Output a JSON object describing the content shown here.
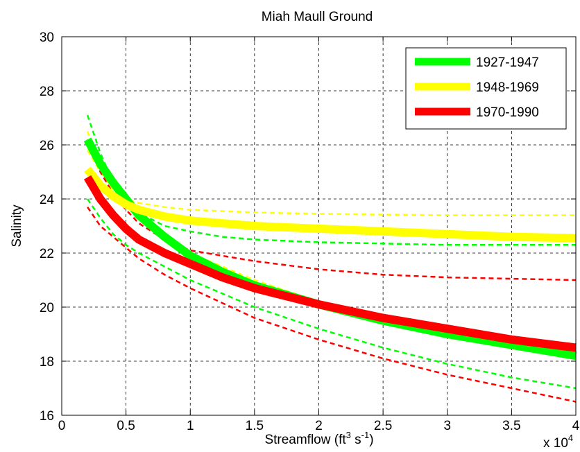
{
  "chart_data": {
    "type": "line",
    "title": "Miah Maull Ground",
    "ylabel": "Salinity",
    "xlabel_main": "Streamflow (ft",
    "xlabel_sup1": "3",
    "xlabel_mid": " s",
    "xlabel_sup2": "-1",
    "xlabel_end": ")",
    "x_multiplier_base": "x 10",
    "x_multiplier_exp": "4",
    "xlim": [
      0,
      4
    ],
    "ylim": [
      16,
      30
    ],
    "xticks": [
      0,
      0.5,
      1,
      1.5,
      2,
      2.5,
      3,
      3.5,
      4
    ],
    "xtick_labels": [
      "0",
      "0.5",
      "1",
      "1.5",
      "2",
      "2.5",
      "3",
      "3.5",
      "4"
    ],
    "yticks": [
      16,
      18,
      20,
      22,
      24,
      26,
      28,
      30
    ],
    "ytick_labels": [
      "16",
      "18",
      "20",
      "22",
      "24",
      "26",
      "28",
      "30"
    ],
    "grid": true,
    "legend_position": "top-right",
    "legend": [
      {
        "label": "1927-1947",
        "color": "#00ff00"
      },
      {
        "label": "1948-1969",
        "color": "#ffff00"
      },
      {
        "label": "1970-1990",
        "color": "#ff0000"
      }
    ],
    "series": [
      {
        "name": "1927-1947",
        "color": "#00ff00",
        "style": "solid",
        "weight": "thick",
        "x": [
          0.2,
          0.3,
          0.4,
          0.5,
          0.6,
          0.8,
          1.0,
          1.25,
          1.5,
          2.0,
          2.5,
          3.0,
          3.5,
          4.0
        ],
        "y": [
          26.2,
          25.3,
          24.6,
          24.0,
          23.4,
          22.6,
          21.9,
          21.3,
          20.8,
          20.1,
          19.5,
          19.0,
          18.6,
          18.2
        ]
      },
      {
        "name": "1927-1947 upper",
        "color": "#00ff00",
        "style": "dashed",
        "weight": "thin",
        "x": [
          0.2,
          0.3,
          0.4,
          0.5,
          0.6,
          0.8,
          1.0,
          1.25,
          1.5,
          2.0,
          2.5,
          3.0,
          3.5,
          4.0
        ],
        "y": [
          27.1,
          25.7,
          24.6,
          23.9,
          23.5,
          23.0,
          22.8,
          22.6,
          22.5,
          22.4,
          22.35,
          22.3,
          22.3,
          22.3
        ]
      },
      {
        "name": "1927-1947 lower",
        "color": "#00ff00",
        "style": "dashed",
        "weight": "thin",
        "x": [
          0.2,
          0.3,
          0.4,
          0.5,
          0.6,
          0.8,
          1.0,
          1.25,
          1.5,
          2.0,
          2.5,
          3.0,
          3.5,
          4.0
        ],
        "y": [
          24.0,
          23.3,
          22.7,
          22.3,
          22.0,
          21.5,
          21.0,
          20.5,
          20.0,
          19.2,
          18.5,
          17.9,
          17.4,
          17.0
        ]
      },
      {
        "name": "1948-1969",
        "color": "#ffff00",
        "style": "solid",
        "weight": "thick",
        "x": [
          0.2,
          0.3,
          0.4,
          0.5,
          0.6,
          0.8,
          1.0,
          1.5,
          2.0,
          2.5,
          3.0,
          3.5,
          4.0
        ],
        "y": [
          25.1,
          24.5,
          24.1,
          23.8,
          23.6,
          23.35,
          23.2,
          23.0,
          22.9,
          22.8,
          22.7,
          22.6,
          22.55
        ]
      },
      {
        "name": "1948-1969 upper",
        "color": "#ffff00",
        "style": "dashed",
        "weight": "thin",
        "x": [
          0.2,
          0.3,
          0.4,
          0.5,
          0.6,
          0.8,
          1.0,
          1.5,
          2.0,
          2.5,
          3.0,
          3.5,
          4.0
        ],
        "y": [
          26.5,
          25.1,
          24.4,
          24.0,
          23.85,
          23.7,
          23.6,
          23.5,
          23.45,
          23.42,
          23.4,
          23.4,
          23.4
        ]
      },
      {
        "name": "1948-1969 lower",
        "color": "#ffff00",
        "style": "dashed",
        "weight": "thin",
        "x": [
          0.2,
          0.3,
          0.4,
          0.5,
          0.6,
          0.8,
          1.0,
          1.5,
          2.0,
          2.5,
          3.0,
          3.5,
          4.0
        ],
        "y": [
          25.8,
          25.0,
          24.3,
          23.8,
          23.3,
          22.6,
          22.0,
          21.0,
          20.2,
          19.6,
          19.1,
          18.7,
          18.3
        ]
      },
      {
        "name": "1970-1990",
        "color": "#ff0000",
        "style": "solid",
        "weight": "thick",
        "x": [
          0.2,
          0.3,
          0.4,
          0.5,
          0.6,
          0.8,
          1.0,
          1.25,
          1.5,
          2.0,
          2.5,
          3.0,
          3.5,
          4.0
        ],
        "y": [
          24.8,
          24.0,
          23.4,
          22.9,
          22.5,
          22.0,
          21.6,
          21.1,
          20.7,
          20.1,
          19.6,
          19.2,
          18.8,
          18.5
        ]
      },
      {
        "name": "1970-1990 upper",
        "color": "#ff0000",
        "style": "dashed",
        "weight": "thin",
        "x": [
          0.2,
          0.3,
          0.4,
          0.5,
          0.6,
          0.8,
          1.0,
          1.5,
          2.0,
          2.5,
          3.0,
          3.5,
          4.0
        ],
        "y": [
          26.2,
          25.0,
          24.2,
          23.6,
          23.1,
          22.5,
          22.1,
          21.7,
          21.4,
          21.2,
          21.1,
          21.05,
          21.0
        ]
      },
      {
        "name": "1970-1990 lower",
        "color": "#ff0000",
        "style": "dashed",
        "weight": "thin",
        "x": [
          0.2,
          0.3,
          0.4,
          0.5,
          0.6,
          0.8,
          1.0,
          1.5,
          2.0,
          2.5,
          3.0,
          3.5,
          4.0
        ],
        "y": [
          23.7,
          23.0,
          22.6,
          22.2,
          21.8,
          21.2,
          20.7,
          19.6,
          18.8,
          18.1,
          17.5,
          17.0,
          16.5
        ]
      }
    ]
  }
}
